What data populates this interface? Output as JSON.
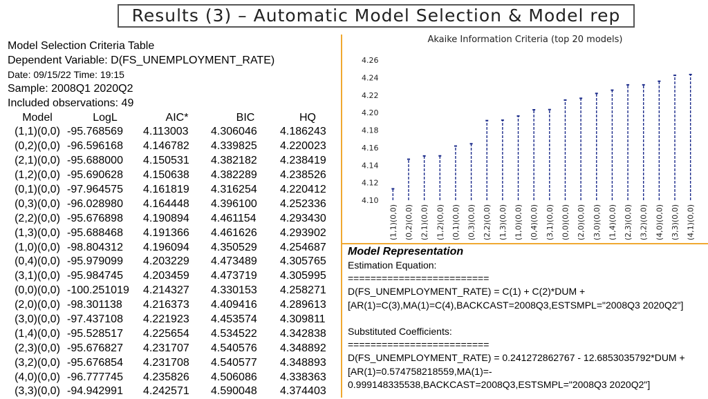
{
  "title": "Results (3) – Automatic Model Selection & Model rep",
  "table_info": {
    "title": "Model Selection Criteria Table",
    "dependent": "Dependent Variable: D(FS_UNEMPLOYMENT_RATE)",
    "datetime": "Date: 09/15/22   Time: 19:15",
    "sample": "Sample: 2008Q1 2020Q2",
    "observations": "Included observations: 49"
  },
  "table": {
    "headers": [
      "Model",
      "LogL",
      "AIC*",
      "BIC",
      "HQ"
    ],
    "rows": [
      [
        "(1,1)(0,0)",
        "-95.768569",
        "4.113003",
        "4.306046",
        "4.186243"
      ],
      [
        "(0,2)(0,0)",
        "-96.596168",
        "4.146782",
        "4.339825",
        "4.220023"
      ],
      [
        "(2,1)(0,0)",
        "-95.688000",
        "4.150531",
        "4.382182",
        "4.238419"
      ],
      [
        "(1,2)(0,0)",
        "-95.690628",
        "4.150638",
        "4.382289",
        "4.238526"
      ],
      [
        "(0,1)(0,0)",
        "-97.964575",
        "4.161819",
        "4.316254",
        "4.220412"
      ],
      [
        "(0,3)(0,0)",
        "-96.028980",
        "4.164448",
        "4.396100",
        "4.252336"
      ],
      [
        "(2,2)(0,0)",
        "-95.676898",
        "4.190894",
        "4.461154",
        "4.293430"
      ],
      [
        "(1,3)(0,0)",
        "-95.688468",
        "4.191366",
        "4.461626",
        "4.293902"
      ],
      [
        "(1,0)(0,0)",
        "-98.804312",
        "4.196094",
        "4.350529",
        "4.254687"
      ],
      [
        "(0,4)(0,0)",
        "-95.979099",
        "4.203229",
        "4.473489",
        "4.305765"
      ],
      [
        "(3,1)(0,0)",
        "-95.984745",
        "4.203459",
        "4.473719",
        "4.305995"
      ],
      [
        "(0,0)(0,0)",
        "-100.251019",
        "4.214327",
        "4.330153",
        "4.258271"
      ],
      [
        "(2,0)(0,0)",
        "-98.301138",
        "4.216373",
        "4.409416",
        "4.289613"
      ],
      [
        "(3,0)(0,0)",
        "-97.437108",
        "4.221923",
        "4.453574",
        "4.309811"
      ],
      [
        "(1,4)(0,0)",
        "-95.528517",
        "4.225654",
        "4.534522",
        "4.342838"
      ],
      [
        "(2,3)(0,0)",
        "-95.676827",
        "4.231707",
        "4.540576",
        "4.348892"
      ],
      [
        "(3,2)(0,0)",
        "-95.676854",
        "4.231708",
        "4.540577",
        "4.348893"
      ],
      [
        "(4,0)(0,0)",
        "-96.777745",
        "4.235826",
        "4.506086",
        "4.338363"
      ],
      [
        "(3,3)(0,0)",
        "-94.942991",
        "4.242571",
        "4.590048",
        "4.374403"
      ]
    ]
  },
  "chart_data": {
    "type": "bar",
    "title": "Akaike Information Criteria (top 20 models)",
    "categories": [
      "(1,1)(0,0)",
      "(0,2)(0,0)",
      "(2,1)(0,0)",
      "(1,2)(0,0)",
      "(0,1)(0,0)",
      "(0,3)(0,0)",
      "(2,2)(0,0)",
      "(1,3)(0,0)",
      "(1,0)(0,0)",
      "(0,4)(0,0)",
      "(3,1)(0,0)",
      "(0,0)(0,0)",
      "(2,0)(0,0)",
      "(3,0)(0,0)",
      "(1,4)(0,0)",
      "(2,3)(0,0)",
      "(3,2)(0,0)",
      "(4,0)(0,0)",
      "(3,3)(0,0)",
      "(4,1)(0,0)"
    ],
    "values": [
      4.113003,
      4.146782,
      4.150531,
      4.150638,
      4.161819,
      4.164448,
      4.190894,
      4.191366,
      4.196094,
      4.203229,
      4.203459,
      4.214327,
      4.216373,
      4.221923,
      4.225654,
      4.231707,
      4.231708,
      4.235826,
      4.242571,
      4.2435
    ],
    "yticks": [
      "4.26",
      "4.24",
      "4.22",
      "4.20",
      "4.18",
      "4.16",
      "4.14",
      "4.12",
      "4.10"
    ],
    "ylim": [
      4.1,
      4.26
    ],
    "xlabel": "",
    "ylabel": "",
    "series_color": "#1a2a8a",
    "grid": false
  },
  "model_rep": {
    "heading": "Model Representation",
    "lines": [
      "Estimation Equation:",
      "=========================",
      "D(FS_UNEMPLOYMENT_RATE) = C(1) + C(2)*DUM +",
      "[AR(1)=C(3),MA(1)=C(4),BACKCAST=2008Q3,ESTSMPL=\"2008Q3 2020Q2\"]",
      "",
      "Substituted Coefficients:",
      "=========================",
      "D(FS_UNEMPLOYMENT_RATE) = 0.241272862767 - 12.6853035792*DUM +",
      "[AR(1)=0.574758218559,MA(1)=-",
      "0.999148335538,BACKCAST=2008Q3,ESTSMPL=\"2008Q3 2020Q2\"]"
    ]
  },
  "colors": {
    "separator": "#f0a830",
    "title_border": "#555555"
  }
}
